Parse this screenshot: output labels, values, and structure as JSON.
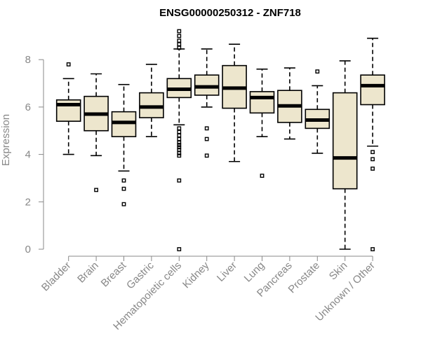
{
  "chart_data": {
    "type": "box",
    "title": "ENSG00000250312 - ZNF718",
    "ylabel": "Expression",
    "xlabel": "",
    "ylim": [
      0,
      9.3
    ],
    "yticks": [
      0,
      2,
      4,
      6,
      8
    ],
    "box_fill": "#ede6cd",
    "box_stroke": "#000000",
    "categories": [
      "Bladder",
      "Brain",
      "Breast",
      "Gastric",
      "Hematopoietic cells",
      "Kidney",
      "Liver",
      "Lung",
      "Pancreas",
      "Prostate",
      "Skin",
      "Unknown / Other"
    ],
    "boxes": [
      {
        "min": 4.0,
        "q1": 5.4,
        "median": 6.1,
        "q3": 6.3,
        "max": 7.2,
        "outliers": [
          7.8
        ]
      },
      {
        "min": 3.95,
        "q1": 5.0,
        "median": 5.7,
        "q3": 6.45,
        "max": 7.4,
        "outliers": [
          2.5
        ]
      },
      {
        "min": 3.3,
        "q1": 4.75,
        "median": 5.35,
        "q3": 5.8,
        "max": 6.95,
        "outliers": [
          2.9,
          2.55,
          1.9
        ]
      },
      {
        "min": 4.75,
        "q1": 5.55,
        "median": 6.0,
        "q3": 6.6,
        "max": 7.8,
        "outliers": []
      },
      {
        "min": 5.25,
        "q1": 6.4,
        "median": 6.75,
        "q3": 7.2,
        "max": 8.45,
        "outliers": [
          9.2,
          9.0,
          8.8,
          8.65,
          8.5,
          5.1,
          4.95,
          4.8,
          4.65,
          4.5,
          4.4,
          4.3,
          4.2,
          4.05,
          3.95,
          2.9,
          0.0
        ]
      },
      {
        "min": 6.0,
        "q1": 6.5,
        "median": 6.85,
        "q3": 7.35,
        "max": 8.45,
        "outliers": [
          5.1,
          4.65,
          3.95
        ]
      },
      {
        "min": 3.7,
        "q1": 5.95,
        "median": 6.8,
        "q3": 7.75,
        "max": 8.65,
        "outliers": []
      },
      {
        "min": 4.75,
        "q1": 5.75,
        "median": 6.4,
        "q3": 6.65,
        "max": 7.6,
        "outliers": [
          3.1
        ]
      },
      {
        "min": 4.65,
        "q1": 5.35,
        "median": 6.05,
        "q3": 6.7,
        "max": 7.65,
        "outliers": []
      },
      {
        "min": 4.05,
        "q1": 5.1,
        "median": 5.45,
        "q3": 5.9,
        "max": 6.9,
        "outliers": [
          7.5
        ]
      },
      {
        "min": 0.0,
        "q1": 2.55,
        "median": 3.85,
        "q3": 6.6,
        "max": 7.95,
        "outliers": []
      },
      {
        "min": 4.35,
        "q1": 6.1,
        "median": 6.9,
        "q3": 7.35,
        "max": 8.9,
        "outliers": [
          4.1,
          3.8,
          3.4,
          0.0
        ]
      }
    ]
  }
}
